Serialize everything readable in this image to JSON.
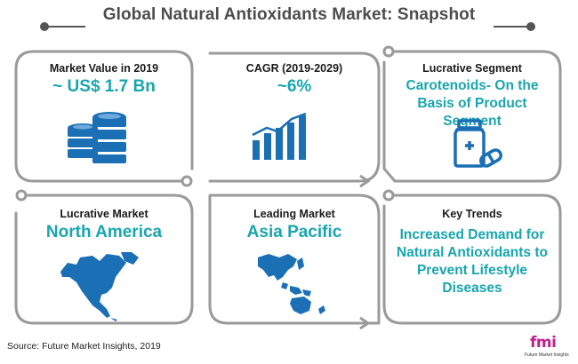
{
  "title": "Global Natural Antioxidants Market: Snapshot",
  "cards": [
    {
      "label": "Market Value in 2019",
      "value": "~ US$ 1.7 Bn",
      "icon": "database-stack-icon"
    },
    {
      "label": "CAGR (2019-2029)",
      "value": "~6%",
      "icon": "rising-bar-chart-icon"
    },
    {
      "label": "Lucrative Segment",
      "value": "Carotenoids- On the Basis of Product Segment",
      "icon": "medicine-bottle-pill-icon"
    },
    {
      "label": "Lucrative Market",
      "value": "North America",
      "icon": "north-america-map-icon"
    },
    {
      "label": "Leading Market",
      "value": "Asia Pacific",
      "icon": "asia-pacific-map-icon"
    },
    {
      "label": "Key Trends",
      "value": "Increased Demand for Natural Antioxidants to Prevent Lifestyle Diseases"
    }
  ],
  "source": "Source: Future Market Insights, 2019",
  "logo": {
    "mark": "fmi",
    "tagline": "Future Market Insights"
  },
  "colors": {
    "accent": "#18a6ad",
    "icon_blue": "#1b6fb5",
    "frame": "#999999",
    "title": "#4d4d4d"
  }
}
